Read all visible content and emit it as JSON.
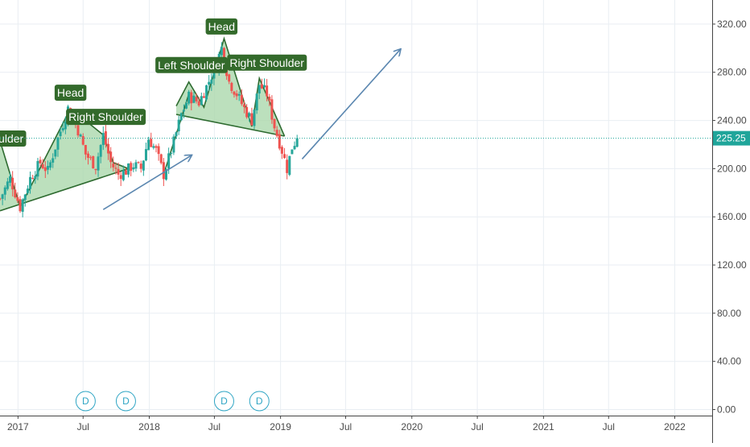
{
  "chart_data": {
    "type": "candlestick",
    "colors": {
      "up": "#26a69a",
      "down": "#ef5350",
      "grid": "#e9eef3",
      "price_line": "#1fa59a",
      "pattern_fill": "#a5d6a7",
      "pattern_stroke": "#2e6b30",
      "label_bg": "#336a2b",
      "arrow": "#5b87b0",
      "dividend": "#2fa5c4",
      "axis_text": "#4a4a4a"
    },
    "y_axis": {
      "side": "right",
      "range": [
        -5,
        340
      ],
      "ticks": [
        {
          "value": 0,
          "label": "0.00"
        },
        {
          "value": 40,
          "label": "40.00"
        },
        {
          "value": 80,
          "label": "80.00"
        },
        {
          "value": 120,
          "label": "120.00"
        },
        {
          "value": 160,
          "label": "160.00"
        },
        {
          "value": 200,
          "label": "200.00"
        },
        {
          "value": 240,
          "label": "240.00"
        },
        {
          "value": 280,
          "label": "280.00"
        },
        {
          "value": 320,
          "label": "320.00"
        }
      ]
    },
    "x_axis": {
      "range": [
        "2016-11-12",
        "2022-04-15"
      ],
      "ticks": [
        {
          "date": "2017-01-01",
          "label": "2017"
        },
        {
          "date": "2017-07-01",
          "label": "Jul"
        },
        {
          "date": "2018-01-01",
          "label": "2018"
        },
        {
          "date": "2018-07-01",
          "label": "Jul"
        },
        {
          "date": "2019-01-01",
          "label": "2019"
        },
        {
          "date": "2019-07-01",
          "label": "Jul"
        },
        {
          "date": "2020-01-01",
          "label": "2020"
        },
        {
          "date": "2020-07-01",
          "label": "Jul"
        },
        {
          "date": "2021-01-01",
          "label": "2021"
        },
        {
          "date": "2021-07-01",
          "label": "Jul"
        },
        {
          "date": "2022-01-01",
          "label": "2022"
        }
      ]
    },
    "last_price": {
      "value": 225.25,
      "label": "225.25"
    },
    "price_path": [
      [
        "2016-11-12",
        175
      ],
      [
        "2016-12-10",
        192
      ],
      [
        "2017-01-07",
        168
      ],
      [
        "2017-02-04",
        192
      ],
      [
        "2017-03-04",
        205
      ],
      [
        "2017-03-25",
        198
      ],
      [
        "2017-04-22",
        225
      ],
      [
        "2017-05-20",
        250
      ],
      [
        "2017-06-17",
        232
      ],
      [
        "2017-07-08",
        212
      ],
      [
        "2017-08-05",
        202
      ],
      [
        "2017-08-26",
        228
      ],
      [
        "2017-09-16",
        205
      ],
      [
        "2017-10-07",
        195
      ],
      [
        "2017-10-28",
        198
      ],
      [
        "2017-11-18",
        203
      ],
      [
        "2017-12-09",
        200
      ],
      [
        "2017-12-30",
        225
      ],
      [
        "2018-01-20",
        215
      ],
      [
        "2018-02-10",
        195
      ],
      [
        "2018-03-10",
        222
      ],
      [
        "2018-03-31",
        245
      ],
      [
        "2018-04-21",
        260
      ],
      [
        "2018-05-19",
        255
      ],
      [
        "2018-06-09",
        268
      ],
      [
        "2018-06-30",
        282
      ],
      [
        "2018-07-21",
        300
      ],
      [
        "2018-08-11",
        272
      ],
      [
        "2018-09-01",
        262
      ],
      [
        "2018-09-22",
        250
      ],
      [
        "2018-10-13",
        240
      ],
      [
        "2018-11-03",
        270
      ],
      [
        "2018-11-24",
        262
      ],
      [
        "2018-12-15",
        235
      ],
      [
        "2019-01-05",
        215
      ],
      [
        "2019-01-19",
        200
      ],
      [
        "2019-02-02",
        218
      ],
      [
        "2019-02-16",
        225.25
      ]
    ],
    "patterns": [
      {
        "name": "head-and-shoulders-2017",
        "points": [
          [
            "2016-11-05",
            230
          ],
          [
            "2017-01-07",
            168
          ],
          [
            "2017-05-27",
            250
          ],
          [
            "2017-08-26",
            228
          ],
          [
            "2017-09-23",
            205
          ],
          [
            "2017-11-04",
            200
          ]
        ],
        "neckline": [
          [
            "2016-11-12",
            165
          ],
          [
            "2017-11-04",
            200
          ]
        ],
        "labels": [
          {
            "text": "houlder",
            "date": "2016-11-25",
            "value": 225
          },
          {
            "text": "Head",
            "date": "2017-05-27",
            "value": 263
          },
          {
            "text": "Right Shoulder",
            "date": "2017-09-02",
            "value": 243
          }
        ]
      },
      {
        "name": "head-and-shoulders-2018",
        "points": [
          [
            "2018-03-17",
            252
          ],
          [
            "2018-04-21",
            272
          ],
          [
            "2018-06-02",
            251
          ],
          [
            "2018-07-28",
            308
          ],
          [
            "2018-10-13",
            235
          ],
          [
            "2018-11-03",
            275
          ],
          [
            "2019-01-12",
            227
          ]
        ],
        "neckline": [
          [
            "2018-03-17",
            245
          ],
          [
            "2019-01-12",
            227
          ]
        ],
        "labels": [
          {
            "text": "Left Shoulder",
            "date": "2018-04-28",
            "value": 286
          },
          {
            "text": "Head",
            "date": "2018-07-21",
            "value": 318
          },
          {
            "text": "Right Shoulder",
            "date": "2018-11-24",
            "value": 288
          }
        ]
      }
    ],
    "trend_lines": [
      {
        "from": [
          "2018-02-10",
          195
        ],
        "to": [
          "2018-04-21",
          262
        ],
        "arrow": false
      }
    ],
    "arrows": [
      {
        "from": [
          "2017-08-26",
          166
        ],
        "to": [
          "2018-04-28",
          211
        ]
      },
      {
        "from": [
          "2019-03-02",
          208
        ],
        "to": [
          "2019-11-30",
          299
        ]
      }
    ],
    "dividends": [
      {
        "date": "2017-07-08",
        "label": "D"
      },
      {
        "date": "2017-10-28",
        "label": "D"
      },
      {
        "date": "2018-07-28",
        "label": "D"
      },
      {
        "date": "2018-11-03",
        "label": "D"
      }
    ]
  }
}
